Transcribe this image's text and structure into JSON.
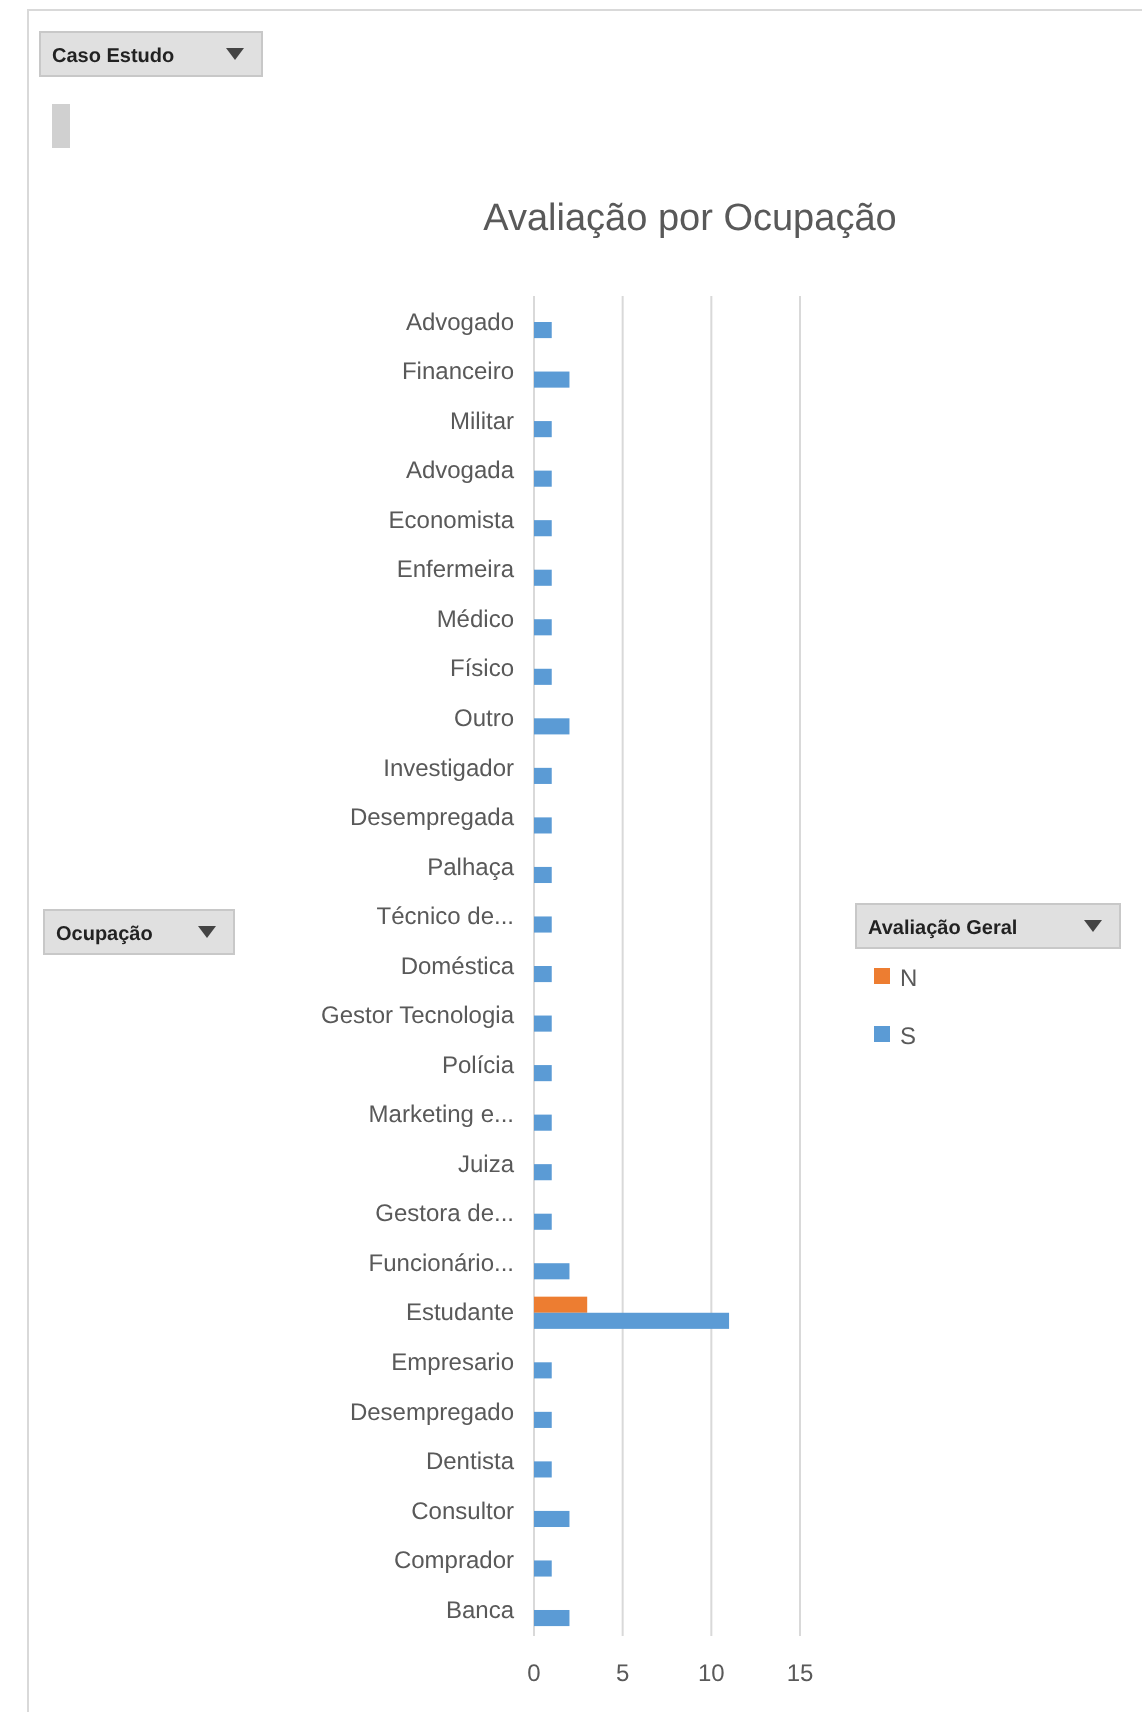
{
  "chart_data": {
    "type": "bar",
    "orientation": "horizontal",
    "title": "Avaliação por Ocupação",
    "categories": [
      "Advogado",
      "Financeiro",
      "Militar",
      "Advogada",
      "Economista",
      "Enfermeira",
      "Médico",
      "Físico",
      "Outro",
      "Investigador",
      "Desempregada",
      "Palhaça",
      "Técnico de...",
      "Doméstica",
      "Gestor Tecnologia",
      "Polícia",
      "Marketing e...",
      "Juiza",
      "Gestora de...",
      "Funcionário...",
      "Estudante",
      "Empresario",
      "Desempregado",
      "Dentista",
      "Consultor",
      "Comprador",
      "Banca"
    ],
    "series": [
      {
        "name": "N",
        "color": "#ed7d31",
        "values": [
          null,
          null,
          null,
          null,
          null,
          null,
          null,
          null,
          null,
          null,
          null,
          null,
          null,
          null,
          null,
          null,
          null,
          null,
          null,
          null,
          3,
          null,
          null,
          null,
          null,
          null,
          null
        ]
      },
      {
        "name": "S",
        "color": "#5b9bd5",
        "values": [
          1,
          2,
          1,
          1,
          1,
          1,
          1,
          1,
          2,
          1,
          1,
          1,
          1,
          1,
          1,
          1,
          1,
          1,
          1,
          2,
          11,
          1,
          1,
          1,
          2,
          1,
          2
        ]
      }
    ],
    "xlim": [
      0,
      15
    ],
    "xticks": [
      0,
      5,
      10,
      15
    ],
    "grid": "x",
    "legend": "right",
    "legend_title": "Avaliação Geral",
    "annotations": [
      "Caso Estudo",
      "Ocupação"
    ]
  }
}
